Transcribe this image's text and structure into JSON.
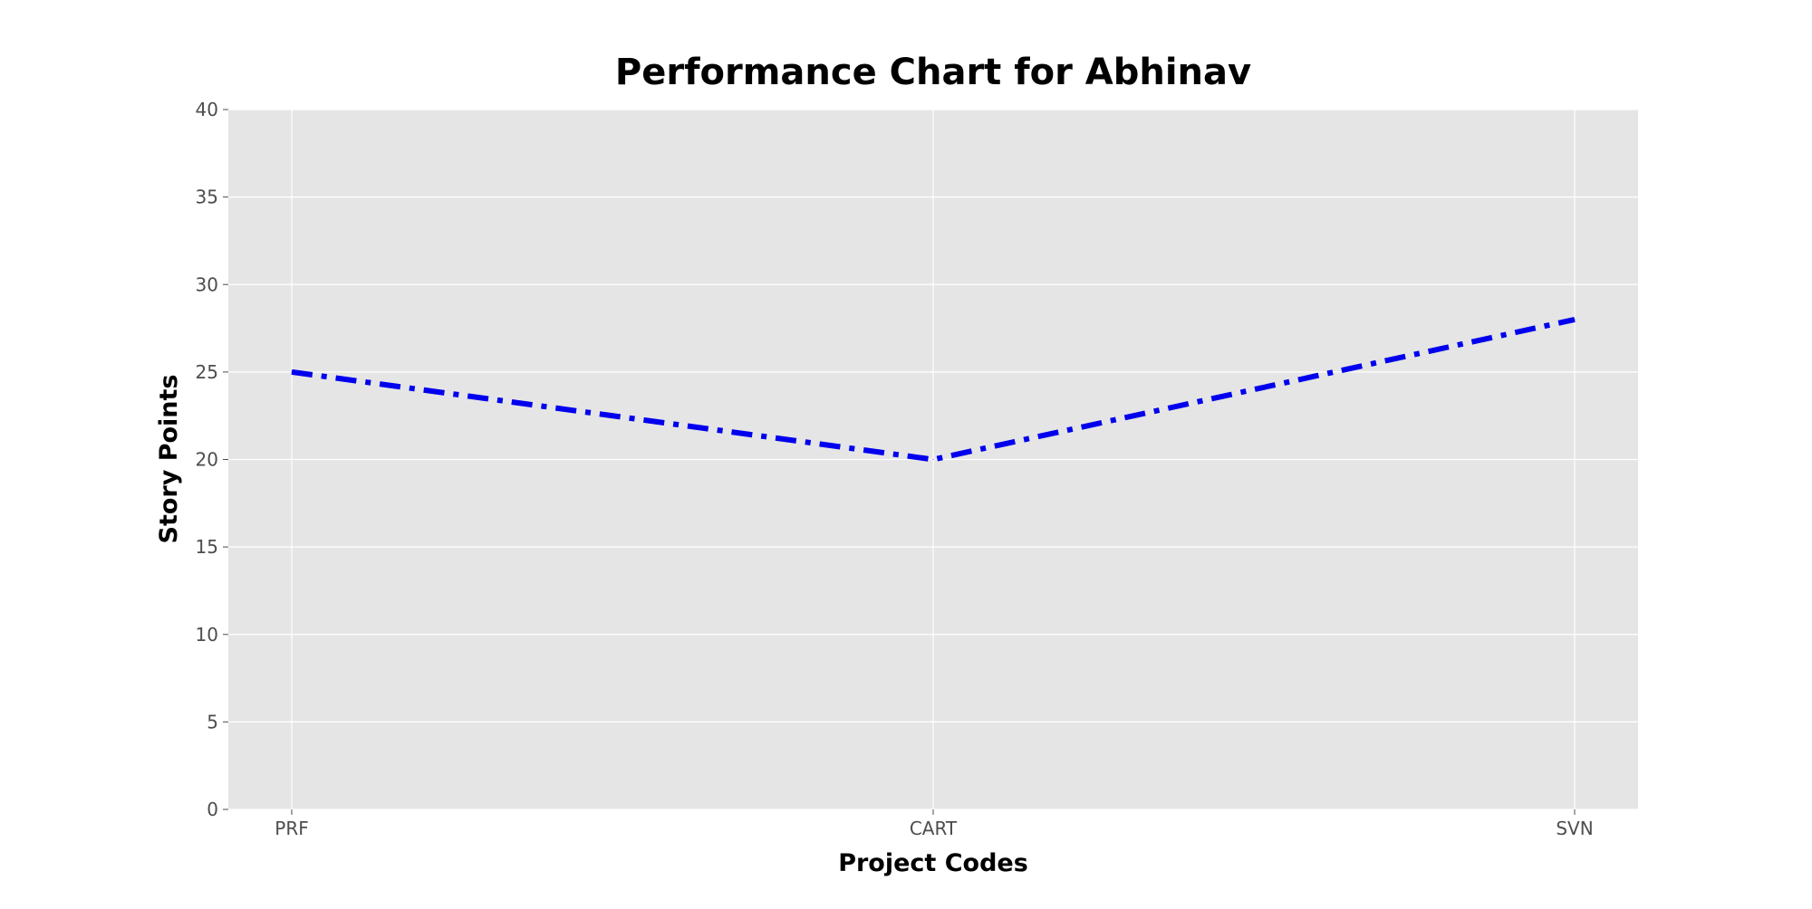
{
  "chart_data": {
    "type": "line",
    "title": "Performance Chart for Abhinav",
    "xlabel": "Project Codes",
    "ylabel": "Story Points",
    "categories": [
      "PRF",
      "CART",
      "SVN"
    ],
    "series": [
      {
        "values": [
          25,
          20,
          28
        ],
        "color": "#0000ee",
        "line_style": "dash-dot"
      }
    ],
    "ylim": [
      0,
      40
    ],
    "yticks": [
      0,
      5,
      10,
      15,
      20,
      25,
      30,
      35,
      40
    ],
    "grid": true,
    "legend": "none",
    "colors": {
      "plot_background": "#e5e5e5",
      "grid": "#ffffff",
      "line": "#0000ee"
    }
  }
}
